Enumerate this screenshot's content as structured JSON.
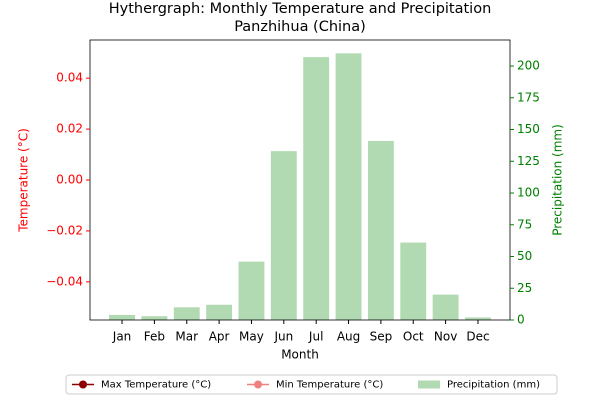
{
  "chart_data": {
    "type": "bar",
    "title": "Hythergraph: Monthly Temperature and Precipitation",
    "subtitle": "Panzhihua (China)",
    "x_label": "Month",
    "y_label": "Temperature (°C)",
    "y2_label": "Precipitation (mm)",
    "categories": [
      "Jan",
      "Feb",
      "Mar",
      "Apr",
      "May",
      "Jun",
      "Jul",
      "Aug",
      "Sep",
      "Oct",
      "Nov",
      "Dec"
    ],
    "series": [
      {
        "name": "Max Temperature (°C)",
        "type": "line",
        "color": "#8b0000",
        "axis": "y",
        "values": [
          null,
          null,
          null,
          null,
          null,
          null,
          null,
          null,
          null,
          null,
          null,
          null
        ]
      },
      {
        "name": "Min Temperature (°C)",
        "type": "line",
        "color": "#f08080",
        "axis": "y",
        "values": [
          null,
          null,
          null,
          null,
          null,
          null,
          null,
          null,
          null,
          null,
          null,
          null
        ]
      },
      {
        "name": "Precipitation (mm)",
        "type": "bar",
        "color": "#b2dab2",
        "axis": "y2",
        "values": [
          4,
          3,
          10,
          12,
          46,
          133,
          207,
          210,
          141,
          61,
          20,
          2
        ]
      }
    ],
    "ylim": [
      -0.055,
      0.055
    ],
    "yticks": [
      {
        "value": -0.04,
        "label": "−0.04"
      },
      {
        "value": -0.02,
        "label": "−0.02"
      },
      {
        "value": 0,
        "label": "0.00"
      },
      0.02,
      0.04
    ],
    "y2lim": [
      0,
      220.5
    ],
    "y2ticks": [
      0,
      25,
      50,
      75,
      100,
      125,
      150,
      175,
      200
    ],
    "y_color": "#ff0000",
    "y2_color": "#008000",
    "legend": "bottom"
  }
}
